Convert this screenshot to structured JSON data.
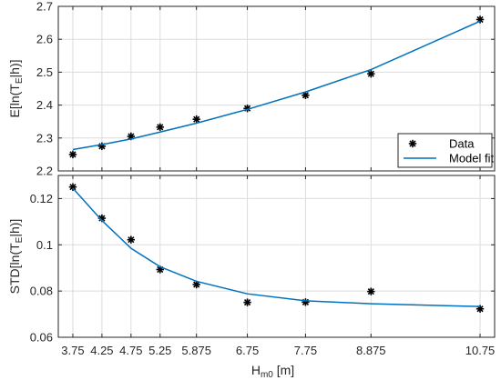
{
  "chart_data": [
    {
      "type": "scatter",
      "x": [
        3.75,
        4.25,
        4.75,
        5.25,
        5.875,
        6.75,
        7.75,
        8.875,
        10.75
      ],
      "xtick_labels": [
        "3.75",
        "4.25",
        "4.75",
        "5.25",
        "5.875",
        "6.75",
        "7.75",
        "8.875",
        "10.75"
      ],
      "xlim": [
        3.5,
        11.0
      ],
      "ylim": [
        2.2,
        2.7
      ],
      "yticks": [
        2.2,
        2.3,
        2.4,
        2.5,
        2.6,
        2.7
      ],
      "ytick_labels": [
        "2.2",
        "2.3",
        "2.4",
        "2.5",
        "2.6",
        "2.7"
      ],
      "ylabel_main": "E[ln(T",
      "ylabel_sub": "E",
      "ylabel_end": "|h)]",
      "grid": true,
      "legend_placement": "bottom-right",
      "series": [
        {
          "name": "Data",
          "kind": "markers",
          "marker": "asterisk",
          "color": "#000000",
          "values": [
            2.25,
            2.275,
            2.305,
            2.333,
            2.357,
            2.39,
            2.43,
            2.495,
            2.66
          ]
        },
        {
          "name": "Model fit",
          "kind": "line",
          "color": "#0072BD",
          "values": [
            2.265,
            2.28,
            2.297,
            2.318,
            2.345,
            2.387,
            2.44,
            2.508,
            2.655
          ]
        }
      ]
    },
    {
      "type": "scatter",
      "x": [
        3.75,
        4.25,
        4.75,
        5.25,
        5.875,
        6.75,
        7.75,
        8.875,
        10.75
      ],
      "xtick_labels": [
        "3.75",
        "4.25",
        "4.75",
        "5.25",
        "5.875",
        "6.75",
        "7.75",
        "8.875",
        "10.75"
      ],
      "xlim": [
        3.5,
        11.0
      ],
      "ylim": [
        0.06,
        0.13
      ],
      "yticks": [
        0.06,
        0.08,
        0.1,
        0.12
      ],
      "ytick_labels": [
        "0.06",
        "0.08",
        "0.1",
        "0.12"
      ],
      "ylabel_main": "STD[ln(T",
      "ylabel_sub": "E",
      "ylabel_end": "|h)]",
      "xlabel_main": "H",
      "xlabel_sub": "m0",
      "xlabel_end": " [m]",
      "grid": true,
      "series": [
        {
          "name": "Data",
          "kind": "markers",
          "marker": "asterisk",
          "color": "#000000",
          "values": [
            0.125,
            0.1115,
            0.1022,
            0.0893,
            0.0828,
            0.0751,
            0.0752,
            0.0798,
            0.0723
          ]
        },
        {
          "name": "Model fit",
          "kind": "line",
          "color": "#0072BD",
          "values": [
            0.1245,
            0.1105,
            0.0985,
            0.0905,
            0.0842,
            0.0788,
            0.0758,
            0.0745,
            0.0733
          ]
        }
      ]
    }
  ]
}
